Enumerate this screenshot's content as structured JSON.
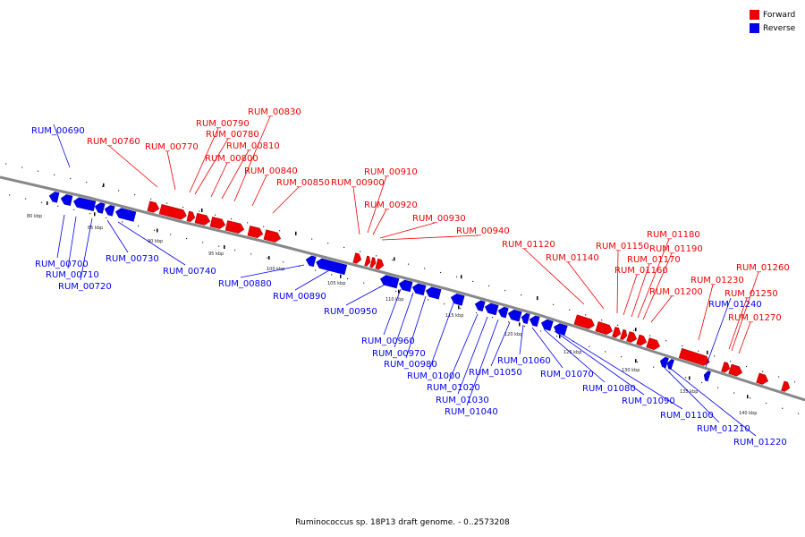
{
  "title": "Ruminococcus sp. 18P13 draft genome. - 0..2573208",
  "legend": [
    {
      "label": "Forward",
      "color": "#ee0000"
    },
    {
      "label": "Reverse",
      "color": "#0000ee"
    }
  ],
  "colors": {
    "forward": "#ee0000",
    "reverse": "#0000ee",
    "backbone": "#888888"
  },
  "tick_labels": [
    "80 kbp",
    "85 kbp",
    "90 kbp",
    "95 kbp",
    "100 kbp",
    "105 kbp",
    "110 kbp",
    "115 kbp",
    "120 kbp",
    "125 kbp",
    "130 kbp",
    "135 kbp",
    "140 kbp"
  ],
  "genes": [
    {
      "id": "RUM_00690",
      "strand": "reverse"
    },
    {
      "id": "RUM_00700",
      "strand": "reverse"
    },
    {
      "id": "RUM_00710",
      "strand": "reverse"
    },
    {
      "id": "RUM_00720",
      "strand": "reverse"
    },
    {
      "id": "RUM_00730",
      "strand": "reverse"
    },
    {
      "id": "RUM_00740",
      "strand": "reverse"
    },
    {
      "id": "RUM_00760",
      "strand": "forward"
    },
    {
      "id": "RUM_00770",
      "strand": "forward"
    },
    {
      "id": "RUM_00780",
      "strand": "forward"
    },
    {
      "id": "RUM_00790",
      "strand": "forward"
    },
    {
      "id": "RUM_00800",
      "strand": "forward"
    },
    {
      "id": "RUM_00810",
      "strand": "forward"
    },
    {
      "id": "RUM_00830",
      "strand": "forward"
    },
    {
      "id": "RUM_00840",
      "strand": "forward"
    },
    {
      "id": "RUM_00850",
      "strand": "forward"
    },
    {
      "id": "RUM_00880",
      "strand": "reverse"
    },
    {
      "id": "RUM_00890",
      "strand": "reverse"
    },
    {
      "id": "RUM_00900",
      "strand": "forward"
    },
    {
      "id": "RUM_00910",
      "strand": "forward"
    },
    {
      "id": "RUM_00920",
      "strand": "forward"
    },
    {
      "id": "RUM_00930",
      "strand": "forward"
    },
    {
      "id": "RUM_00940",
      "strand": "forward"
    },
    {
      "id": "RUM_00950",
      "strand": "reverse"
    },
    {
      "id": "RUM_00960",
      "strand": "reverse"
    },
    {
      "id": "RUM_00970",
      "strand": "reverse"
    },
    {
      "id": "RUM_00980",
      "strand": "reverse"
    },
    {
      "id": "RUM_01000",
      "strand": "reverse"
    },
    {
      "id": "RUM_01020",
      "strand": "reverse"
    },
    {
      "id": "RUM_01030",
      "strand": "reverse"
    },
    {
      "id": "RUM_01040",
      "strand": "reverse"
    },
    {
      "id": "RUM_01050",
      "strand": "reverse"
    },
    {
      "id": "RUM_01060",
      "strand": "reverse"
    },
    {
      "id": "RUM_01070",
      "strand": "reverse"
    },
    {
      "id": "RUM_01080",
      "strand": "reverse"
    },
    {
      "id": "RUM_01090",
      "strand": "reverse"
    },
    {
      "id": "RUM_01100",
      "strand": "reverse"
    },
    {
      "id": "RUM_01120",
      "strand": "forward"
    },
    {
      "id": "RUM_01140",
      "strand": "forward"
    },
    {
      "id": "RUM_01150",
      "strand": "forward"
    },
    {
      "id": "RUM_01160",
      "strand": "forward"
    },
    {
      "id": "RUM_01170",
      "strand": "forward"
    },
    {
      "id": "RUM_01180",
      "strand": "forward"
    },
    {
      "id": "RUM_01190",
      "strand": "forward"
    },
    {
      "id": "RUM_01200",
      "strand": "forward"
    },
    {
      "id": "RUM_01210",
      "strand": "reverse"
    },
    {
      "id": "RUM_01220",
      "strand": "reverse"
    },
    {
      "id": "RUM_01230",
      "strand": "forward"
    },
    {
      "id": "RUM_01240",
      "strand": "reverse"
    },
    {
      "id": "RUM_01250",
      "strand": "forward"
    },
    {
      "id": "RUM_01260",
      "strand": "forward"
    },
    {
      "id": "RUM_01270",
      "strand": "forward"
    }
  ]
}
